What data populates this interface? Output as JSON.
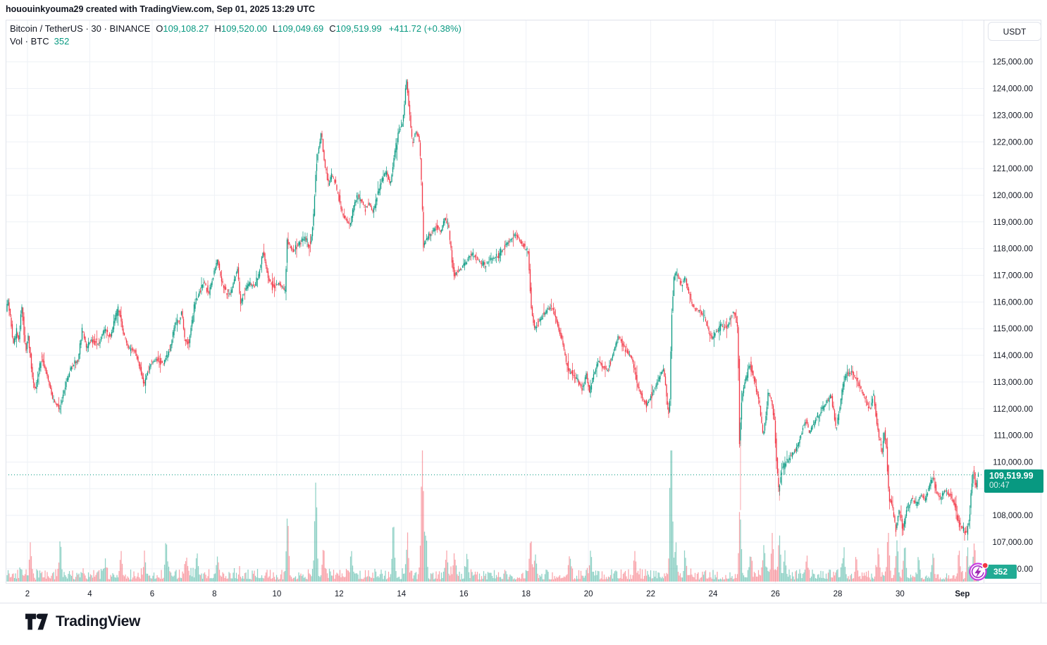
{
  "watermark": "hououinkyouma29 created with TradingView.com, Sep 01, 2025 13:29 UTC",
  "legend": {
    "symbol": "Bitcoin / TetherUS",
    "sep": "·",
    "interval": "30",
    "exchange": "BINANCE",
    "ohlc": [
      {
        "label": "O",
        "value": "109,108.27"
      },
      {
        "label": "H",
        "value": "109,520.00"
      },
      {
        "label": "L",
        "value": "109,049.69"
      },
      {
        "label": "C",
        "value": "109,519.99"
      }
    ],
    "change": "+411.72 (+0.38%)",
    "vol_title": "Vol · BTC",
    "vol_value": "352"
  },
  "price_scale": {
    "currency_button": "USDT",
    "ticks": [
      "125,000.00",
      "124,000.00",
      "123,000.00",
      "122,000.00",
      "121,000.00",
      "120,000.00",
      "119,000.00",
      "118,000.00",
      "117,000.00",
      "116,000.00",
      "115,000.00",
      "114,000.00",
      "113,000.00",
      "112,000.00",
      "111,000.00",
      "110,000.00",
      "109,000.00",
      "108,000.00",
      "107,000.00",
      "106,000.00"
    ],
    "tick_values": [
      125000,
      124000,
      123000,
      122000,
      121000,
      120000,
      119000,
      118000,
      117000,
      116000,
      115000,
      114000,
      113000,
      112000,
      111000,
      110000,
      109000,
      108000,
      107000,
      106000
    ],
    "last_price_label": "109,519.99",
    "countdown": "00:47",
    "volume_badge": "352"
  },
  "time_scale": {
    "ticks": [
      {
        "label": "2",
        "day": 2
      },
      {
        "label": "4",
        "day": 4
      },
      {
        "label": "6",
        "day": 6
      },
      {
        "label": "8",
        "day": 8
      },
      {
        "label": "10",
        "day": 10
      },
      {
        "label": "12",
        "day": 12
      },
      {
        "label": "14",
        "day": 14
      },
      {
        "label": "16",
        "day": 16
      },
      {
        "label": "18",
        "day": 18
      },
      {
        "label": "20",
        "day": 20
      },
      {
        "label": "22",
        "day": 22
      },
      {
        "label": "24",
        "day": 24
      },
      {
        "label": "26",
        "day": 26
      },
      {
        "label": "28",
        "day": 28
      },
      {
        "label": "30",
        "day": 30
      },
      {
        "label": "Sep",
        "day": 32,
        "bold": true
      }
    ]
  },
  "footer": {
    "brand": "TradingView"
  },
  "colors": {
    "up": "#089981",
    "down": "#f23645",
    "grid": "#eef1f6",
    "border": "#e0e3eb",
    "text": "#131722",
    "price_label_bg": "#089981",
    "volume_badge_bg": "#22ab94",
    "indicator_ring": "#c93ce0",
    "indicator_bolt": "#9c27b0",
    "alert_dot": "#f23645"
  },
  "chart_data": {
    "type": "candlestick",
    "title": "Bitcoin / TetherUS · 30 · BINANCE",
    "interval_minutes": 30,
    "x_range_days": [
      1.3,
      32.56
    ],
    "ylim": [
      105500,
      126500
    ],
    "grid": true,
    "last_candle": {
      "open": 109108.27,
      "high": 109520.0,
      "low": 109049.69,
      "close": 109519.99,
      "change": 411.72,
      "change_pct": 0.38,
      "volume_btc": 352
    },
    "last_price": 109519.99,
    "price_path": [
      [
        1.3,
        115400
      ],
      [
        1.41,
        116050
      ],
      [
        1.5,
        115300
      ],
      [
        1.57,
        114400
      ],
      [
        1.68,
        114900
      ],
      [
        1.76,
        114500
      ],
      [
        1.84,
        115950
      ],
      [
        1.98,
        114100
      ],
      [
        2.05,
        114800
      ],
      [
        2.2,
        113100
      ],
      [
        2.28,
        112700
      ],
      [
        2.48,
        113950
      ],
      [
        2.65,
        113300
      ],
      [
        2.86,
        112300
      ],
      [
        3.0,
        112100
      ],
      [
        3.06,
        111900
      ],
      [
        3.25,
        112900
      ],
      [
        3.45,
        113600
      ],
      [
        3.65,
        113800
      ],
      [
        3.79,
        114970
      ],
      [
        3.92,
        114300
      ],
      [
        4.1,
        114600
      ],
      [
        4.3,
        114400
      ],
      [
        4.51,
        115000
      ],
      [
        4.7,
        114700
      ],
      [
        4.85,
        115400
      ],
      [
        4.96,
        115740
      ],
      [
        5.1,
        114900
      ],
      [
        5.25,
        114300
      ],
      [
        5.48,
        114150
      ],
      [
        5.65,
        113500
      ],
      [
        5.78,
        112900
      ],
      [
        5.95,
        113600
      ],
      [
        6.15,
        113850
      ],
      [
        6.39,
        113700
      ],
      [
        6.6,
        114200
      ],
      [
        6.77,
        115200
      ],
      [
        6.9,
        115300
      ],
      [
        6.98,
        115640
      ],
      [
        7.08,
        114600
      ],
      [
        7.2,
        114450
      ],
      [
        7.41,
        115950
      ],
      [
        7.6,
        116500
      ],
      [
        7.7,
        116790
      ],
      [
        7.85,
        116300
      ],
      [
        8.02,
        117100
      ],
      [
        8.13,
        117600
      ],
      [
        8.25,
        116800
      ],
      [
        8.4,
        116400
      ],
      [
        8.55,
        116300
      ],
      [
        8.7,
        117000
      ],
      [
        8.78,
        117270
      ],
      [
        8.86,
        115900
      ],
      [
        9.0,
        116400
      ],
      [
        9.15,
        116700
      ],
      [
        9.33,
        116600
      ],
      [
        9.5,
        117300
      ],
      [
        9.6,
        117920
      ],
      [
        9.75,
        116900
      ],
      [
        9.9,
        116560
      ],
      [
        10.1,
        116700
      ],
      [
        10.3,
        116400
      ],
      [
        10.36,
        118300
      ],
      [
        10.55,
        117900
      ],
      [
        10.75,
        118200
      ],
      [
        10.95,
        118400
      ],
      [
        11.1,
        118100
      ],
      [
        11.2,
        119000
      ],
      [
        11.3,
        121200
      ],
      [
        11.46,
        122350
      ],
      [
        11.55,
        121300
      ],
      [
        11.68,
        120400
      ],
      [
        11.8,
        120800
      ],
      [
        11.95,
        120300
      ],
      [
        12.1,
        119400
      ],
      [
        12.25,
        119100
      ],
      [
        12.38,
        118850
      ],
      [
        12.5,
        119600
      ],
      [
        12.62,
        120000
      ],
      [
        12.75,
        119800
      ],
      [
        12.88,
        119500
      ],
      [
        13.0,
        119700
      ],
      [
        13.11,
        119350
      ],
      [
        13.25,
        119900
      ],
      [
        13.4,
        120600
      ],
      [
        13.55,
        120900
      ],
      [
        13.67,
        120350
      ],
      [
        13.8,
        121500
      ],
      [
        13.95,
        122400
      ],
      [
        14.05,
        122600
      ],
      [
        14.12,
        123300
      ],
      [
        14.19,
        124450
      ],
      [
        14.28,
        123200
      ],
      [
        14.38,
        121900
      ],
      [
        14.5,
        122350
      ],
      [
        14.6,
        122150
      ],
      [
        14.66,
        121000
      ],
      [
        14.74,
        118100
      ],
      [
        14.85,
        118400
      ],
      [
        15.0,
        118600
      ],
      [
        15.15,
        118850
      ],
      [
        15.3,
        118600
      ],
      [
        15.42,
        119150
      ],
      [
        15.55,
        118800
      ],
      [
        15.65,
        117600
      ],
      [
        15.72,
        117000
      ],
      [
        15.85,
        117150
      ],
      [
        16.0,
        117300
      ],
      [
        16.12,
        117550
      ],
      [
        16.3,
        117800
      ],
      [
        16.5,
        117550
      ],
      [
        16.7,
        117400
      ],
      [
        16.9,
        117600
      ],
      [
        17.11,
        117700
      ],
      [
        17.3,
        118000
      ],
      [
        17.5,
        118300
      ],
      [
        17.68,
        118550
      ],
      [
        17.85,
        118250
      ],
      [
        18.0,
        118050
      ],
      [
        18.1,
        117800
      ],
      [
        18.2,
        115800
      ],
      [
        18.3,
        115000
      ],
      [
        18.45,
        115300
      ],
      [
        18.61,
        115550
      ],
      [
        18.8,
        115800
      ],
      [
        18.92,
        115650
      ],
      [
        19.05,
        115100
      ],
      [
        19.2,
        114500
      ],
      [
        19.3,
        113900
      ],
      [
        19.4,
        113400
      ],
      [
        19.55,
        113300
      ],
      [
        19.7,
        113000
      ],
      [
        19.85,
        112750
      ],
      [
        19.96,
        113300
      ],
      [
        20.07,
        112600
      ],
      [
        20.2,
        113300
      ],
      [
        20.35,
        113750
      ],
      [
        20.5,
        113600
      ],
      [
        20.65,
        113400
      ],
      [
        20.84,
        114150
      ],
      [
        21.0,
        114760
      ],
      [
        21.16,
        114300
      ],
      [
        21.3,
        114100
      ],
      [
        21.45,
        113800
      ],
      [
        21.6,
        112900
      ],
      [
        21.75,
        112400
      ],
      [
        21.9,
        112150
      ],
      [
        22.05,
        112500
      ],
      [
        22.2,
        112850
      ],
      [
        22.35,
        113300
      ],
      [
        22.45,
        113500
      ],
      [
        22.55,
        112300
      ],
      [
        22.63,
        111700
      ],
      [
        22.7,
        115500
      ],
      [
        22.78,
        116900
      ],
      [
        22.86,
        117150
      ],
      [
        23.0,
        116600
      ],
      [
        23.13,
        116950
      ],
      [
        23.25,
        116300
      ],
      [
        23.4,
        115800
      ],
      [
        23.6,
        115650
      ],
      [
        23.75,
        115400
      ],
      [
        23.9,
        114900
      ],
      [
        24.0,
        114600
      ],
      [
        24.15,
        114900
      ],
      [
        24.3,
        115150
      ],
      [
        24.45,
        114950
      ],
      [
        24.6,
        115450
      ],
      [
        24.72,
        115600
      ],
      [
        24.83,
        115000
      ],
      [
        24.88,
        110800
      ],
      [
        24.95,
        112300
      ],
      [
        25.05,
        113000
      ],
      [
        25.21,
        113650
      ],
      [
        25.35,
        113100
      ],
      [
        25.5,
        112300
      ],
      [
        25.64,
        110950
      ],
      [
        25.72,
        111700
      ],
      [
        25.8,
        112600
      ],
      [
        25.89,
        112400
      ],
      [
        26.0,
        111500
      ],
      [
        26.08,
        109800
      ],
      [
        26.14,
        108900
      ],
      [
        26.22,
        109700
      ],
      [
        26.35,
        109900
      ],
      [
        26.5,
        110200
      ],
      [
        26.65,
        110400
      ],
      [
        26.8,
        110800
      ],
      [
        26.92,
        111300
      ],
      [
        27.02,
        111550
      ],
      [
        27.12,
        111100
      ],
      [
        27.25,
        111400
      ],
      [
        27.4,
        111800
      ],
      [
        27.55,
        112000
      ],
      [
        27.7,
        112300
      ],
      [
        27.81,
        112500
      ],
      [
        27.9,
        111900
      ],
      [
        27.98,
        111200
      ],
      [
        28.1,
        112100
      ],
      [
        28.22,
        113000
      ],
      [
        28.35,
        113400
      ],
      [
        28.5,
        113300
      ],
      [
        28.62,
        113100
      ],
      [
        28.75,
        112800
      ],
      [
        28.9,
        112400
      ],
      [
        29.0,
        112100
      ],
      [
        29.1,
        112050
      ],
      [
        29.18,
        112600
      ],
      [
        29.28,
        111500
      ],
      [
        29.38,
        110800
      ],
      [
        29.46,
        110300
      ],
      [
        29.53,
        111200
      ],
      [
        29.6,
        110400
      ],
      [
        29.68,
        108700
      ],
      [
        29.78,
        108300
      ],
      [
        29.9,
        107500
      ],
      [
        30.0,
        108200
      ],
      [
        30.08,
        107700
      ],
      [
        30.14,
        107450
      ],
      [
        30.25,
        108300
      ],
      [
        30.4,
        108600
      ],
      [
        30.55,
        108400
      ],
      [
        30.7,
        108750
      ],
      [
        30.85,
        108600
      ],
      [
        31.0,
        109200
      ],
      [
        31.08,
        109400
      ],
      [
        31.2,
        108850
      ],
      [
        31.32,
        108700
      ],
      [
        31.45,
        108950
      ],
      [
        31.58,
        108800
      ],
      [
        31.7,
        108650
      ],
      [
        31.82,
        108200
      ],
      [
        31.93,
        107650
      ],
      [
        32.05,
        107500
      ],
      [
        32.16,
        107280
      ],
      [
        32.25,
        107800
      ],
      [
        32.33,
        109100
      ],
      [
        32.4,
        109880
      ],
      [
        32.46,
        108950
      ],
      [
        32.52,
        109520
      ]
    ],
    "long_wicks": [
      [
        24.88,
        108200
      ],
      [
        26.13,
        108550
      ]
    ],
    "volume_spikes": [
      [
        2.1,
        35
      ],
      [
        3.05,
        42
      ],
      [
        4.5,
        25
      ],
      [
        5.0,
        28
      ],
      [
        5.76,
        30
      ],
      [
        6.45,
        48
      ],
      [
        7.1,
        32
      ],
      [
        7.45,
        28
      ],
      [
        8.1,
        30
      ],
      [
        10.35,
        83
      ],
      [
        11.25,
        126
      ],
      [
        11.5,
        40
      ],
      [
        12.4,
        28
      ],
      [
        13.74,
        74
      ],
      [
        14.19,
        48
      ],
      [
        14.67,
        170
      ],
      [
        14.78,
        60
      ],
      [
        15.45,
        40
      ],
      [
        15.7,
        35
      ],
      [
        16.1,
        30
      ],
      [
        18.15,
        48
      ],
      [
        18.3,
        35
      ],
      [
        19.4,
        32
      ],
      [
        20.07,
        30
      ],
      [
        21.5,
        25
      ],
      [
        22.63,
        60
      ],
      [
        22.66,
        185
      ],
      [
        22.8,
        45
      ],
      [
        23.1,
        30
      ],
      [
        24.87,
        75
      ],
      [
        25.2,
        35
      ],
      [
        25.64,
        40
      ],
      [
        25.9,
        60
      ],
      [
        26.13,
        55
      ],
      [
        26.3,
        35
      ],
      [
        27.0,
        25
      ],
      [
        28.2,
        30
      ],
      [
        28.6,
        25
      ],
      [
        29.3,
        30
      ],
      [
        29.62,
        55
      ],
      [
        29.9,
        40
      ],
      [
        30.15,
        45
      ],
      [
        30.6,
        25
      ],
      [
        31.05,
        28
      ],
      [
        31.9,
        30
      ],
      [
        32.16,
        35
      ],
      [
        32.38,
        48
      ]
    ]
  }
}
